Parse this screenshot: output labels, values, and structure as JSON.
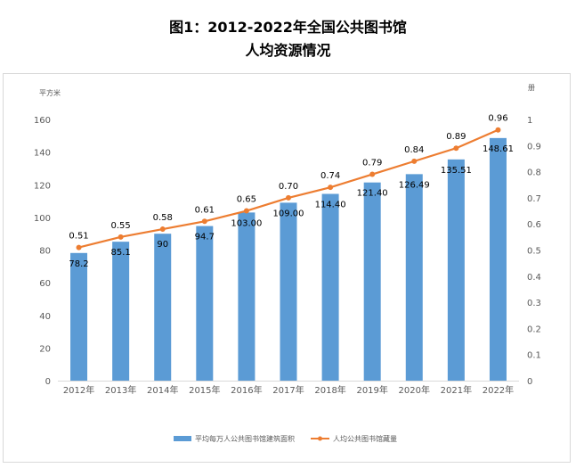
{
  "title": {
    "line1": "图1：2012-2022年全国公共图书馆",
    "line2": "人均资源情况"
  },
  "chart_data": {
    "type": "bar",
    "categories": [
      "2012年",
      "2013年",
      "2014年",
      "2015年",
      "2016年",
      "2017年",
      "2018年",
      "2019年",
      "2020年",
      "2021年",
      "2022年"
    ],
    "series": [
      {
        "name": "平均每万人公共图书馆建筑面积",
        "type": "bar",
        "axis": "left",
        "color": "#5b9bd5",
        "values": [
          78.2,
          85.1,
          90,
          94.7,
          103.0,
          109.0,
          114.4,
          121.4,
          126.49,
          135.51,
          148.61
        ],
        "labels": [
          "78.2",
          "85.1",
          "90",
          "94.7",
          "103.00",
          "109.00",
          "114.40",
          "121.40",
          "126.49",
          "135.51",
          "148.61"
        ]
      },
      {
        "name": "人均公共图书馆藏量",
        "type": "line",
        "axis": "right",
        "color": "#ed7d31",
        "values": [
          0.51,
          0.55,
          0.58,
          0.61,
          0.65,
          0.7,
          0.74,
          0.79,
          0.84,
          0.89,
          0.96
        ],
        "labels": [
          "0.51",
          "0.55",
          "0.58",
          "0.61",
          "0.65",
          "0.70",
          "0.74",
          "0.79",
          "0.84",
          "0.89",
          "0.96"
        ]
      }
    ],
    "y_left": {
      "unit": "平方米",
      "range": [
        0,
        160
      ],
      "ticks": [
        "0",
        "20",
        "40",
        "60",
        "80",
        "100",
        "120",
        "140",
        "160"
      ]
    },
    "y_right": {
      "unit": "册",
      "range": [
        0,
        1
      ],
      "ticks": [
        "0",
        "0.1",
        "0.2",
        "0.3",
        "0.4",
        "0.5",
        "0.6",
        "0.7",
        "0.8",
        "0.9",
        "1"
      ]
    },
    "grid": false,
    "legend_position": "bottom"
  }
}
